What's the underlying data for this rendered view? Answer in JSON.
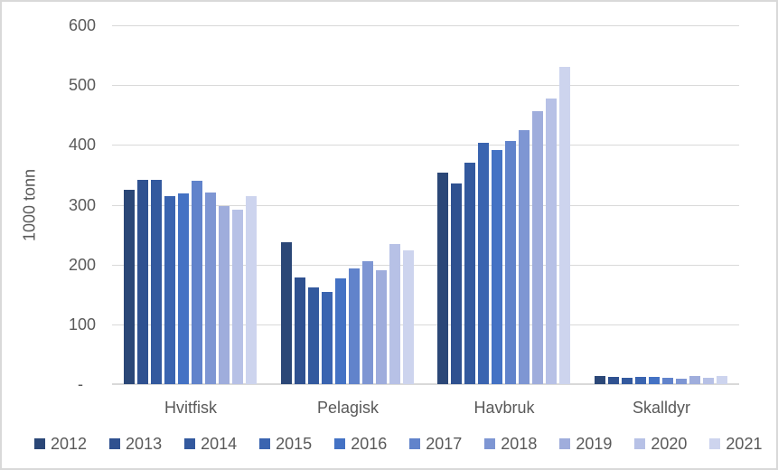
{
  "chart_data": {
    "type": "bar",
    "title": "",
    "xlabel": "",
    "ylabel": "1000 tonn",
    "ylim": [
      0,
      600
    ],
    "ytick_interval": 100,
    "ytick_labels": [
      "-",
      "100",
      "200",
      "300",
      "400",
      "500",
      "600"
    ],
    "grid": true,
    "legend_position": "bottom",
    "categories": [
      "Hvitfisk",
      "Pelagisk",
      "Havbruk",
      "Skalldyr"
    ],
    "series": [
      {
        "name": "2012",
        "color": "#2b4777",
        "values": [
          325,
          238,
          354,
          13
        ]
      },
      {
        "name": "2013",
        "color": "#2f5190",
        "values": [
          341,
          178,
          336,
          12
        ]
      },
      {
        "name": "2014",
        "color": "#33599e",
        "values": [
          341,
          162,
          370,
          10
        ]
      },
      {
        "name": "2015",
        "color": "#3a64b0",
        "values": [
          315,
          154,
          404,
          12
        ]
      },
      {
        "name": "2016",
        "color": "#4472c4",
        "values": [
          319,
          177,
          391,
          12
        ]
      },
      {
        "name": "2017",
        "color": "#6183cb",
        "values": [
          340,
          193,
          406,
          10
        ]
      },
      {
        "name": "2018",
        "color": "#7e96d3",
        "values": [
          321,
          205,
          425,
          9
        ]
      },
      {
        "name": "2019",
        "color": "#9faddc",
        "values": [
          298,
          191,
          457,
          13
        ]
      },
      {
        "name": "2020",
        "color": "#b7c1e6",
        "values": [
          292,
          235,
          477,
          11
        ]
      },
      {
        "name": "2021",
        "color": "#cdd4ee",
        "values": [
          315,
          224,
          530,
          14
        ]
      }
    ],
    "colors": {
      "grid": "#d9d9d9",
      "axis_line": "#d9d9d9",
      "text": "#595959",
      "background": "#ffffff",
      "border": "#d9d9d9"
    }
  }
}
